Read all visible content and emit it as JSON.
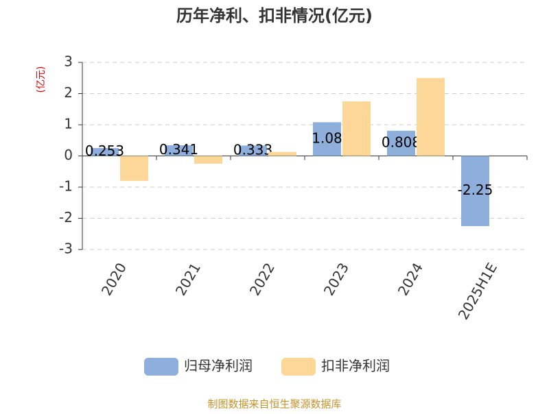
{
  "chart_data": {
    "type": "bar",
    "title": "历年净利、扣非情况(亿元)",
    "y_label": "(亿元)",
    "categories": [
      "2020",
      "2021",
      "2022",
      "2023",
      "2024",
      "2025H1E"
    ],
    "series": [
      {
        "name": "归母净利润",
        "color": "#8eaedc",
        "values": [
          0.253,
          0.341,
          0.333,
          1.08,
          0.808,
          -2.25
        ]
      },
      {
        "name": "扣非净利润",
        "color": "#fdd797",
        "values": [
          -0.8,
          -0.25,
          0.13,
          1.75,
          2.5,
          null
        ]
      }
    ],
    "ylim": [
      -3,
      3
    ],
    "yticks": [
      -3,
      -2,
      -1,
      0,
      1,
      2,
      3
    ],
    "grid": true,
    "source": "制图数据来自恒生聚源数据库"
  }
}
